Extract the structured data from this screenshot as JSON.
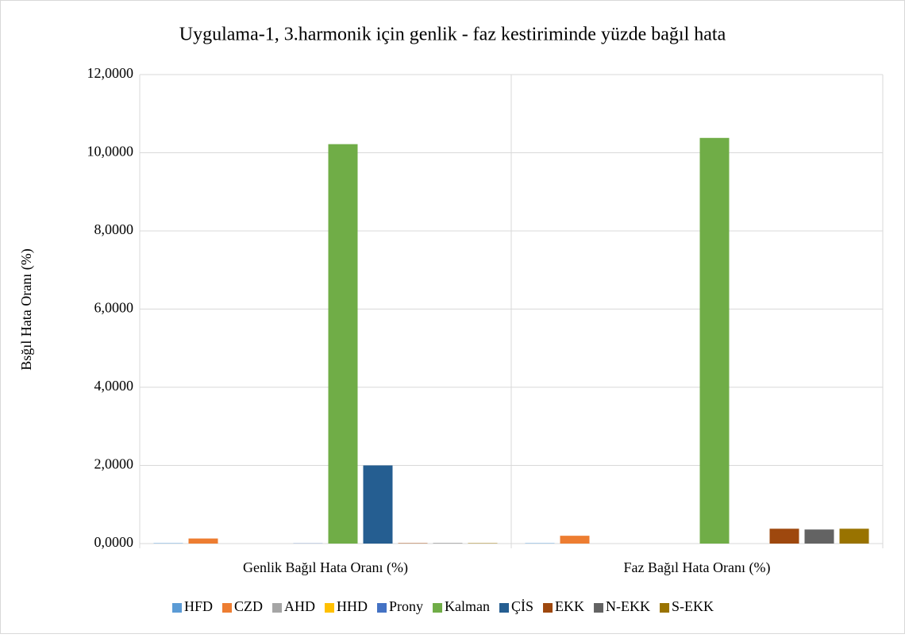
{
  "chart_data": {
    "type": "bar",
    "title": "Uygulama-1, 3.harmonik için genlik - faz kestiriminde yüzde bağıl hata",
    "y_label": "Bsğıl Hata Oranı (%)",
    "categories": [
      "Genlik Bağıl Hata Oranı (%)",
      "Faz Bağıl Hata Oranı (%)"
    ],
    "series": [
      {
        "name": "HFD",
        "color": "#5b9bd5",
        "values": [
          0.01,
          0.01
        ]
      },
      {
        "name": "CZD",
        "color": "#ed7d31",
        "values": [
          0.13,
          0.2
        ]
      },
      {
        "name": "AHD",
        "color": "#a5a5a5",
        "values": [
          0,
          0
        ]
      },
      {
        "name": "HHD",
        "color": "#ffc000",
        "values": [
          0,
          0
        ]
      },
      {
        "name": "Prony",
        "color": "#4472c4",
        "values": [
          0.005,
          0
        ]
      },
      {
        "name": "Kalman",
        "color": "#70ad47",
        "values": [
          10.22,
          10.38
        ]
      },
      {
        "name": "ÇİS",
        "color": "#255e91",
        "values": [
          2.0,
          0
        ]
      },
      {
        "name": "EKK",
        "color": "#9e480e",
        "values": [
          0.01,
          0.38
        ]
      },
      {
        "name": "N-EKK",
        "color": "#636363",
        "values": [
          0.01,
          0.36
        ]
      },
      {
        "name": "S-EKK",
        "color": "#997300",
        "values": [
          0.01,
          0.38
        ]
      }
    ],
    "ylim": [
      0,
      12
    ],
    "yticks": [
      {
        "value": 0,
        "label": "0,0000"
      },
      {
        "value": 2,
        "label": "2,0000"
      },
      {
        "value": 4,
        "label": "4,0000"
      },
      {
        "value": 6,
        "label": "6,0000"
      },
      {
        "value": 8,
        "label": "8,0000"
      },
      {
        "value": 10,
        "label": "10,0000"
      },
      {
        "value": 12,
        "label": "12,0000"
      }
    ],
    "grid": true,
    "legend": "bottom"
  }
}
